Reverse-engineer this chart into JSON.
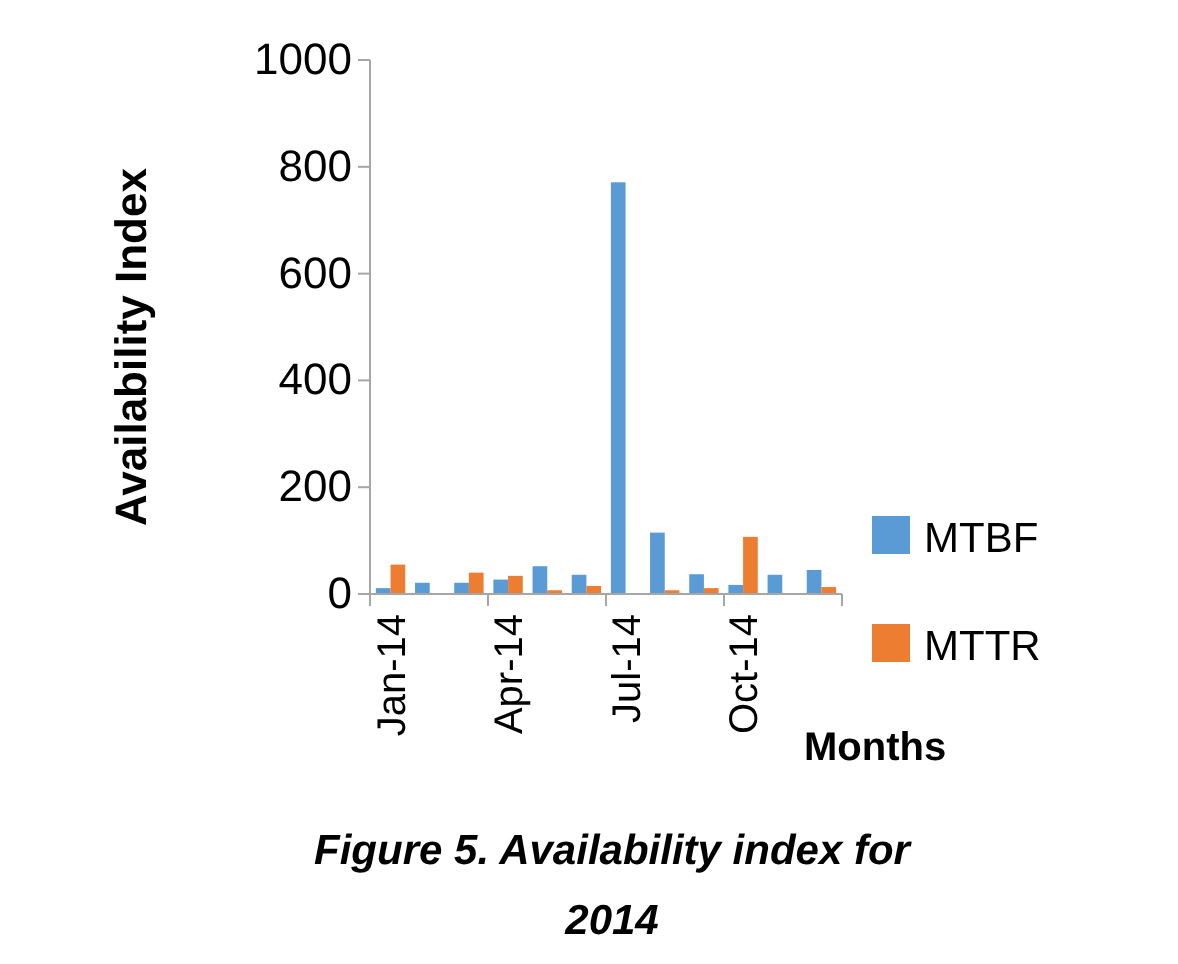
{
  "chart_data": {
    "type": "bar",
    "title": "Figure 5. Availability index for 2014",
    "xlabel": "Months",
    "ylabel": "Availability Index",
    "categories": [
      "Jan-14",
      null,
      null,
      "Apr-14",
      null,
      null,
      "Jul-14",
      null,
      null,
      "Oct-14",
      null,
      null
    ],
    "series": [
      {
        "name": "MTBF",
        "color": "#5b9bd5",
        "values": [
          11,
          21,
          21,
          27,
          52,
          36,
          771,
          115,
          37,
          17,
          36,
          45
        ]
      },
      {
        "name": "MTTR",
        "color": "#ed7d31",
        "values": [
          55,
          null,
          40,
          34,
          7,
          15,
          null,
          7,
          11,
          107,
          null,
          13
        ]
      }
    ],
    "ylim": [
      0,
      1000
    ],
    "yticks": [
      0,
      200,
      400,
      600,
      800,
      1000
    ],
    "grid": false,
    "legend": "right"
  }
}
